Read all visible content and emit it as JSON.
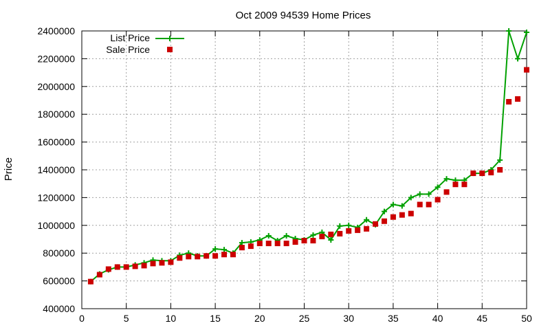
{
  "chart_data": {
    "type": "line",
    "title": "Oct 2009 94539 Home Prices",
    "xlabel": "",
    "ylabel": "Price",
    "xlim": [
      0,
      50
    ],
    "ylim": [
      400000,
      2400000
    ],
    "xticks": [
      0,
      5,
      10,
      15,
      20,
      25,
      30,
      35,
      40,
      45,
      50
    ],
    "yticks": [
      400000,
      600000,
      800000,
      1000000,
      1200000,
      1400000,
      1600000,
      1800000,
      2000000,
      2200000,
      2400000
    ],
    "grid": true,
    "legend": "top-left",
    "x": [
      1,
      2,
      3,
      4,
      5,
      6,
      7,
      8,
      9,
      10,
      11,
      12,
      13,
      14,
      15,
      16,
      17,
      18,
      19,
      20,
      21,
      22,
      23,
      24,
      25,
      26,
      27,
      28,
      29,
      30,
      31,
      32,
      33,
      34,
      35,
      36,
      37,
      38,
      39,
      40,
      41,
      42,
      43,
      44,
      45,
      46,
      47,
      48,
      49,
      50
    ],
    "series": [
      {
        "name": "List Price",
        "style": "line-with-plus-markers",
        "color": "#00a000",
        "values": [
          595000,
          650000,
          680000,
          700000,
          700000,
          715000,
          730000,
          750000,
          745000,
          745000,
          785000,
          800000,
          780000,
          780000,
          830000,
          825000,
          800000,
          875000,
          880000,
          895000,
          925000,
          890000,
          925000,
          905000,
          895000,
          930000,
          950000,
          895000,
          995000,
          1000000,
          985000,
          1040000,
          1005000,
          1100000,
          1150000,
          1140000,
          1200000,
          1225000,
          1225000,
          1275000,
          1335000,
          1325000,
          1325000,
          1375000,
          1375000,
          1400000,
          1470000,
          2400000,
          2200000,
          2390000
        ]
      },
      {
        "name": "Sale Price",
        "style": "square-markers",
        "color": "#cc0000",
        "values": [
          595000,
          645000,
          685000,
          700000,
          700000,
          705000,
          710000,
          725000,
          730000,
          735000,
          765000,
          775000,
          775000,
          780000,
          780000,
          790000,
          790000,
          840000,
          850000,
          870000,
          870000,
          870000,
          870000,
          880000,
          890000,
          890000,
          920000,
          935000,
          940000,
          960000,
          965000,
          975000,
          1010000,
          1030000,
          1060000,
          1075000,
          1085000,
          1150000,
          1150000,
          1185000,
          1240000,
          1295000,
          1295000,
          1375000,
          1375000,
          1380000,
          1400000,
          1890000,
          1910000,
          2120000
        ]
      }
    ]
  }
}
